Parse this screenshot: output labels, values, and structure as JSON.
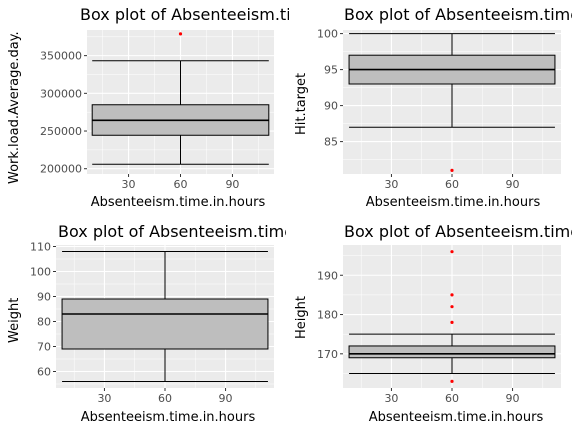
{
  "chart_data": [
    {
      "type": "box",
      "title": "Box plot of Absenteeism.time.in.hours",
      "xlabel": "Absenteeism.time.in.hours",
      "ylabel": "Work.load.Average.day.",
      "xlim": [
        6,
        114
      ],
      "ylim": [
        193000,
        384000
      ],
      "xticks": [
        30,
        60,
        90
      ],
      "yticks": [
        200000,
        250000,
        300000,
        350000
      ],
      "ytick_labels": [
        "200000",
        "250000",
        "300000",
        "350000"
      ],
      "box": {
        "x": 60,
        "whisker_low": 205917,
        "q1": 244387,
        "median": 264249,
        "q3": 284853,
        "whisker_high": 343253
      },
      "outliers": [
        {
          "x": 60,
          "y": 378884
        }
      ]
    },
    {
      "type": "box",
      "title": "Box plot of Absenteeism.time.in.hours",
      "xlabel": "Absenteeism.time.in.hours",
      "ylabel": "Hit.target",
      "xlim": [
        6,
        114
      ],
      "ylim": [
        80.5,
        100.5
      ],
      "xticks": [
        30,
        60,
        90
      ],
      "yticks": [
        85,
        90,
        95,
        100
      ],
      "ytick_labels": [
        "85",
        "90",
        "95",
        "100"
      ],
      "box": {
        "x": 60,
        "whisker_low": 87,
        "q1": 93,
        "median": 95,
        "q3": 97,
        "whisker_high": 100
      },
      "outliers": [
        {
          "x": 60,
          "y": 81
        }
      ]
    },
    {
      "type": "box",
      "title": "Box plot of Absenteeism.time.in.hours",
      "xlabel": "Absenteeism.time.in.hours",
      "ylabel": "Weight",
      "xlim": [
        6,
        114
      ],
      "ylim": [
        53.4,
        110.6
      ],
      "xticks": [
        30,
        60,
        90
      ],
      "yticks": [
        60,
        70,
        80,
        90,
        100,
        110
      ],
      "ytick_labels": [
        "60",
        "70",
        "80",
        "90",
        "100",
        "110"
      ],
      "box": {
        "x": 60,
        "whisker_low": 56,
        "q1": 69,
        "median": 83,
        "q3": 89,
        "whisker_high": 108
      },
      "outliers": []
    },
    {
      "type": "box",
      "title": "Box plot of Absenteeism.time.in.hours",
      "xlabel": "Absenteeism.time.in.hours",
      "ylabel": "Height",
      "xlim": [
        6,
        114
      ],
      "ylim": [
        161.3,
        197.7
      ],
      "xticks": [
        30,
        60,
        90
      ],
      "yticks": [
        170,
        180,
        190
      ],
      "ytick_labels": [
        "170",
        "180",
        "190"
      ],
      "box": {
        "x": 60,
        "whisker_low": 165,
        "q1": 169,
        "median": 170,
        "q3": 172,
        "whisker_high": 175
      },
      "outliers": [
        {
          "x": 60,
          "y": 163
        },
        {
          "x": 60,
          "y": 178
        },
        {
          "x": 60,
          "y": 182
        },
        {
          "x": 60,
          "y": 185
        },
        {
          "x": 60,
          "y": 196
        }
      ]
    }
  ],
  "colors": {
    "panel_bg": "#EBEBEB",
    "grid": "#FFFFFF",
    "box_fill": "#BEBEBE",
    "outlier": "#FF0000",
    "line": "#000000"
  }
}
